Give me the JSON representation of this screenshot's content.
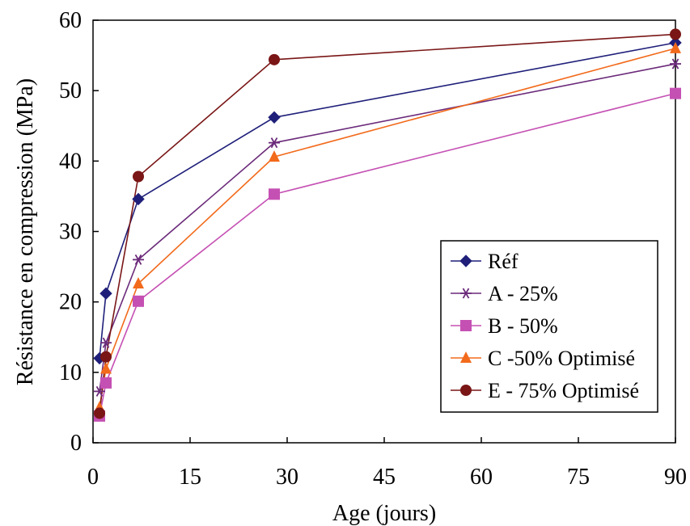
{
  "chart_data": {
    "type": "line",
    "title": "",
    "xlabel": "Age (jours)",
    "ylabel": "Résistance en compression (MPa)",
    "xlim": [
      0,
      90
    ],
    "ylim": [
      0,
      60
    ],
    "xticks": [
      0,
      15,
      30,
      45,
      60,
      75,
      90
    ],
    "yticks": [
      0,
      10,
      20,
      30,
      40,
      50,
      60
    ],
    "grid": false,
    "legend_position": "right-middle",
    "series": [
      {
        "name": "Réf",
        "color": "#1f1f7a",
        "marker": "diamond",
        "points": [
          [
            1,
            12
          ],
          [
            2,
            21.2
          ],
          [
            7,
            34.6
          ],
          [
            28,
            46.2
          ],
          [
            90,
            56.8
          ]
        ]
      },
      {
        "name": "A - 25%",
        "color": "#6b2a7a",
        "marker": "asterisk",
        "points": [
          [
            1,
            7.3
          ],
          [
            2,
            14.2
          ],
          [
            7,
            26
          ],
          [
            28,
            42.6
          ],
          [
            90,
            53.8
          ]
        ]
      },
      {
        "name": "B - 50%",
        "color": "#c550b3",
        "marker": "square",
        "points": [
          [
            1,
            3.8
          ],
          [
            2,
            8.5
          ],
          [
            7,
            20.1
          ],
          [
            28,
            35.3
          ],
          [
            90,
            49.6
          ]
        ]
      },
      {
        "name": "C -50% Optimisé",
        "color": "#f26a1b",
        "marker": "triangle",
        "points": [
          [
            1,
            5
          ],
          [
            2,
            10.5
          ],
          [
            7,
            22.6
          ],
          [
            28,
            40.6
          ],
          [
            90,
            56
          ]
        ]
      },
      {
        "name": "E - 75% Optimisé",
        "color": "#7a1616",
        "marker": "circle",
        "points": [
          [
            1,
            4.2
          ],
          [
            2,
            12.2
          ],
          [
            7,
            37.8
          ],
          [
            28,
            54.4
          ],
          [
            90,
            58
          ]
        ]
      }
    ]
  }
}
